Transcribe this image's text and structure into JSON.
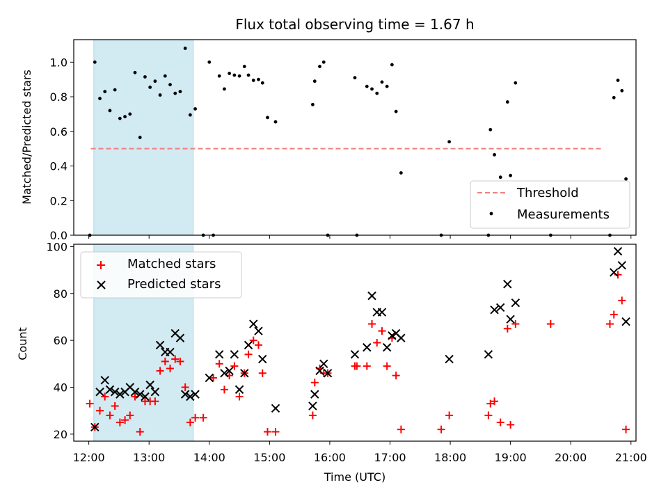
{
  "chart_data": [
    {
      "type": "scatter",
      "title": "Flux total observing time = 1.67 h",
      "ylabel": "Matched/Predicted stars",
      "xlabel": "",
      "ylim": [
        0,
        1.13
      ],
      "yticks": [
        0.0,
        0.2,
        0.4,
        0.6,
        0.8,
        1.0
      ],
      "ytick_labels": [
        "0.0",
        "0.2",
        "0.4",
        "0.6",
        "0.8",
        "1.0"
      ],
      "xlim": [
        "11:45",
        "21:05"
      ],
      "xticks": [
        "12:00",
        "13:00",
        "14:00",
        "15:00",
        "16:00",
        "17:00",
        "18:00",
        "19:00",
        "20:00",
        "21:00"
      ],
      "shaded_interval": [
        "12:05",
        "13:44"
      ],
      "shade_color": "#add8e6",
      "threshold": {
        "label": "Threshold",
        "value": 0.5,
        "x_range": [
          "12:02",
          "20:32"
        ],
        "color": "#f08080"
      },
      "legend": {
        "position": "lower right",
        "entries": [
          "Threshold",
          "Measurements"
        ]
      },
      "series": [
        {
          "name": "Measurements",
          "color": "#000000",
          "x": [
            "12:01",
            "12:06",
            "12:11",
            "12:16",
            "12:21",
            "12:26",
            "12:31",
            "12:36",
            "12:41",
            "12:46",
            "12:51",
            "12:56",
            "13:01",
            "13:06",
            "13:11",
            "13:16",
            "13:21",
            "13:26",
            "13:31",
            "13:36",
            "13:41",
            "13:46",
            "13:54",
            "14:00",
            "14:04",
            "14:10",
            "14:15",
            "14:20",
            "14:25",
            "14:30",
            "14:35",
            "14:39",
            "14:44",
            "14:49",
            "14:53",
            "14:58",
            "15:06",
            "15:43",
            "15:45",
            "15:50",
            "15:54",
            "15:58",
            "16:25",
            "16:27",
            "16:37",
            "16:42",
            "16:47",
            "16:52",
            "16:57",
            "17:02",
            "17:06",
            "17:11",
            "17:51",
            "17:59",
            "18:38",
            "18:40",
            "18:44",
            "18:50",
            "18:57",
            "19:00",
            "19:05",
            "19:40",
            "20:39",
            "20:43",
            "20:47",
            "20:51",
            "20:55"
          ],
          "y": [
            0.0,
            1.0,
            0.79,
            0.83,
            0.72,
            0.84,
            0.675,
            0.685,
            0.7,
            0.94,
            0.565,
            0.915,
            0.855,
            0.89,
            0.81,
            0.92,
            0.87,
            0.82,
            0.83,
            1.08,
            0.695,
            0.73,
            0.0,
            1.0,
            0.0,
            0.92,
            0.845,
            0.935,
            0.925,
            0.92,
            0.975,
            0.925,
            0.895,
            0.9,
            0.88,
            0.68,
            0.655,
            0.755,
            0.89,
            0.975,
            1.0,
            0.0,
            0.91,
            0.0,
            0.86,
            0.845,
            0.82,
            0.885,
            0.86,
            0.985,
            0.715,
            0.36,
            0.0,
            0.54,
            0.0,
            0.61,
            0.465,
            0.335,
            0.77,
            0.345,
            0.88,
            0.0,
            0.0,
            0.795,
            0.895,
            0.835,
            0.325
          ]
        }
      ]
    },
    {
      "type": "scatter",
      "title": "",
      "ylabel": "Count",
      "xlabel": "Time (UTC)",
      "ylim": [
        17,
        101
      ],
      "yticks": [
        20,
        40,
        60,
        80,
        100
      ],
      "ytick_labels": [
        "20",
        "40",
        "60",
        "80",
        "100"
      ],
      "xlim": [
        "11:45",
        "21:05"
      ],
      "xticks": [
        "12:00",
        "13:00",
        "14:00",
        "15:00",
        "16:00",
        "17:00",
        "18:00",
        "19:00",
        "20:00",
        "21:00"
      ],
      "xtick_labels": [
        "12:00",
        "13:00",
        "14:00",
        "15:00",
        "16:00",
        "17:00",
        "18:00",
        "19:00",
        "20:00",
        "21:00"
      ],
      "shaded_interval": [
        "12:05",
        "13:44"
      ],
      "shade_color": "#add8e6",
      "legend": {
        "position": "upper left",
        "entries": [
          "Matched stars",
          "Predicted stars"
        ]
      },
      "series": [
        {
          "name": "Matched stars",
          "marker": "+",
          "color": "#ff0000",
          "x": [
            "12:01",
            "12:06",
            "12:11",
            "12:16",
            "12:21",
            "12:26",
            "12:31",
            "12:36",
            "12:41",
            "12:46",
            "12:51",
            "12:56",
            "13:01",
            "13:06",
            "13:11",
            "13:16",
            "13:21",
            "13:26",
            "13:31",
            "13:36",
            "13:41",
            "13:46",
            "13:54",
            "14:04",
            "14:10",
            "14:15",
            "14:20",
            "14:25",
            "14:30",
            "14:35",
            "14:39",
            "14:44",
            "14:49",
            "14:53",
            "14:58",
            "15:06",
            "15:43",
            "15:45",
            "15:50",
            "15:54",
            "15:58",
            "16:25",
            "16:27",
            "16:37",
            "16:42",
            "16:47",
            "16:52",
            "16:57",
            "17:02",
            "17:06",
            "17:11",
            "17:51",
            "17:59",
            "18:38",
            "18:40",
            "18:44",
            "18:50",
            "18:57",
            "19:00",
            "19:05",
            "19:40",
            "20:39",
            "20:43",
            "20:47",
            "20:51",
            "20:55"
          ],
          "y": [
            33,
            23,
            30,
            36,
            28,
            32,
            25,
            26,
            28,
            36,
            21,
            34,
            34,
            34,
            47,
            51,
            48,
            52,
            51,
            40,
            25,
            27,
            27,
            44,
            50,
            39,
            45,
            49,
            36,
            46,
            54,
            60,
            58,
            46,
            21,
            21,
            28,
            42,
            48,
            46,
            46,
            49,
            49,
            49,
            67,
            59,
            64,
            49,
            61,
            45,
            22,
            22,
            28,
            28,
            33,
            34,
            25,
            65,
            24,
            67,
            67,
            67,
            71,
            88,
            77,
            22
          ]
        },
        {
          "name": "Predicted stars",
          "marker": "x",
          "color": "#000000",
          "x": [
            "12:06",
            "12:11",
            "12:16",
            "12:21",
            "12:26",
            "12:31",
            "12:36",
            "12:41",
            "12:46",
            "12:51",
            "12:56",
            "13:01",
            "13:06",
            "13:11",
            "13:16",
            "13:21",
            "13:26",
            "13:31",
            "13:36",
            "13:41",
            "13:46",
            "14:00",
            "14:10",
            "14:15",
            "14:20",
            "14:25",
            "14:30",
            "14:35",
            "14:39",
            "14:44",
            "14:49",
            "14:53",
            "15:06",
            "15:43",
            "15:45",
            "15:50",
            "15:54",
            "15:58",
            "16:25",
            "16:37",
            "16:42",
            "16:47",
            "16:52",
            "16:57",
            "17:02",
            "17:06",
            "17:11",
            "17:59",
            "18:38",
            "18:44",
            "18:50",
            "18:57",
            "19:00",
            "19:05",
            "20:43",
            "20:47",
            "20:51",
            "20:55"
          ],
          "y": [
            23,
            38,
            43,
            39,
            38,
            37,
            38,
            40,
            38,
            37,
            36,
            41,
            38,
            58,
            55,
            55,
            63,
            61,
            37,
            36,
            37,
            44,
            54,
            46,
            47,
            54,
            39,
            46,
            58,
            67,
            64,
            52,
            31,
            32,
            37,
            47,
            50,
            46,
            54,
            57,
            79,
            72,
            72,
            57,
            62,
            63,
            61,
            52,
            54,
            73,
            74,
            84,
            69,
            76,
            89,
            98,
            92,
            68
          ]
        }
      ]
    }
  ]
}
